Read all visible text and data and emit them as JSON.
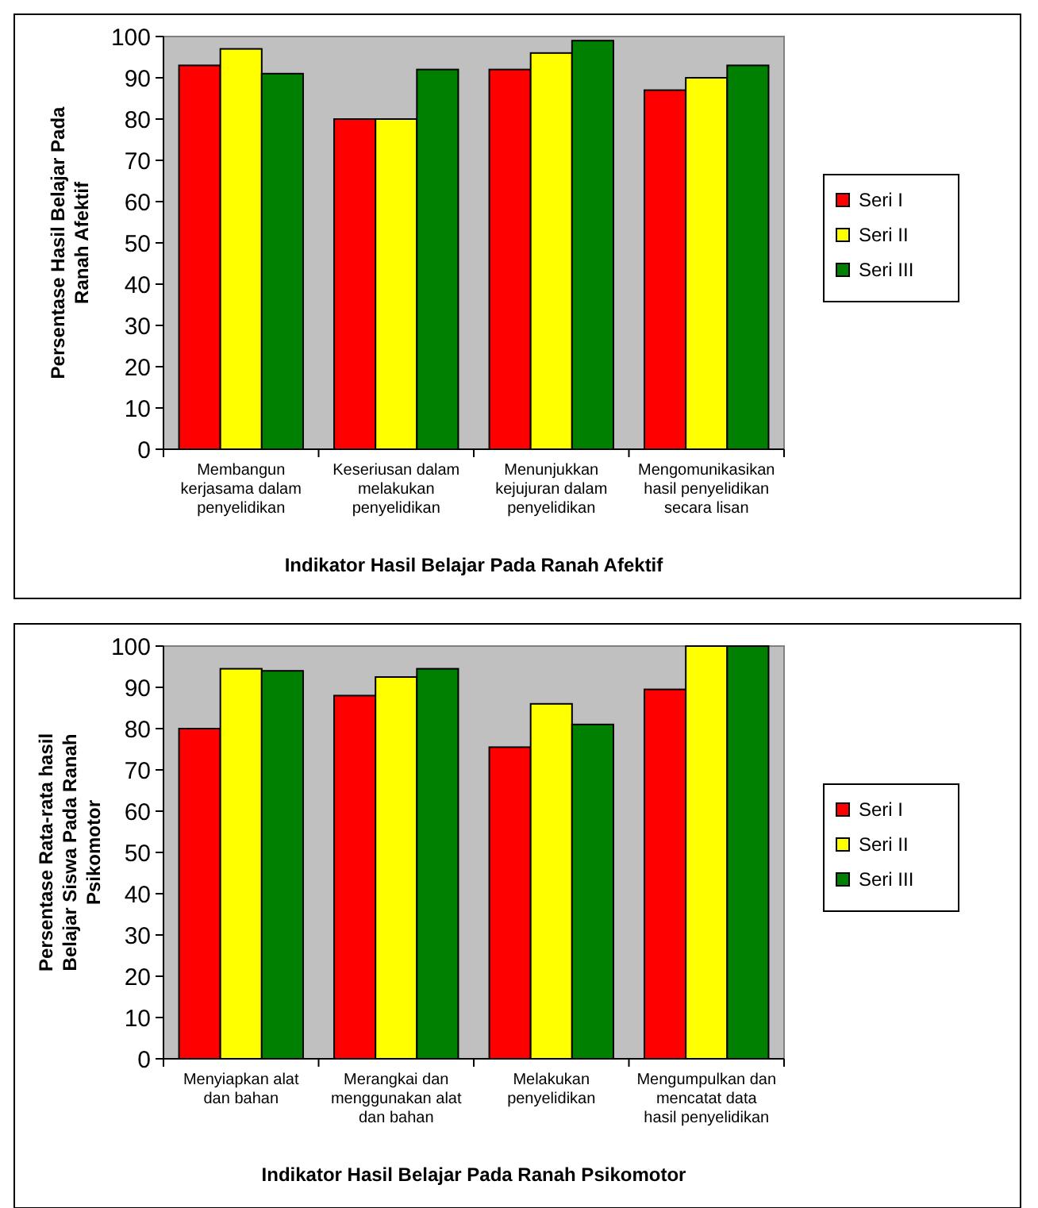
{
  "chart_data": [
    {
      "type": "bar",
      "xlabel": "Indikator Hasil Belajar Pada Ranah Afektif",
      "ylabel": "Persentase Hasil Belajar Pada Ranah Afektif",
      "categories": [
        "Membangun kerjasama dalam penyelidikan",
        "Keseriusan dalam melakukan penyelidikan",
        "Menunjukkan kejujuran dalam penyelidikan",
        "Mengomunikasikan hasil penyelidikan secara lisan"
      ],
      "ylim": [
        0,
        100
      ],
      "yticks": [
        0,
        10,
        20,
        30,
        40,
        50,
        60,
        70,
        80,
        90,
        100
      ],
      "legend": "right",
      "series": [
        {
          "name": "Seri I",
          "color": "#ff0000",
          "values": [
            93,
            80,
            92,
            87
          ]
        },
        {
          "name": "Seri II",
          "color": "#ffff00",
          "values": [
            97,
            80,
            96,
            90
          ]
        },
        {
          "name": "Seri III",
          "color": "#008000",
          "values": [
            91,
            92,
            99,
            93
          ]
        }
      ]
    },
    {
      "type": "bar",
      "xlabel": "Indikator Hasil Belajar Pada Ranah Psikomotor",
      "ylabel": "Persentase Rata-rata hasil Belajar Siswa Pada Ranah Psikomotor",
      "categories": [
        "Menyiapkan alat dan bahan",
        "Merangkai dan menggunakan alat dan bahan",
        "Melakukan penyelidikan",
        "Mengumpulkan dan mencatat data hasil penyelidikan"
      ],
      "ylim": [
        0,
        100
      ],
      "yticks": [
        0,
        10,
        20,
        30,
        40,
        50,
        60,
        70,
        80,
        90,
        100
      ],
      "legend": "right",
      "series": [
        {
          "name": "Seri I",
          "color": "#ff0000",
          "values": [
            80,
            88,
            75.5,
            89.5
          ]
        },
        {
          "name": "Seri II",
          "color": "#ffff00",
          "values": [
            94.5,
            92.5,
            86,
            100
          ]
        },
        {
          "name": "Seri III",
          "color": "#008000",
          "values": [
            94,
            94.5,
            81,
            100
          ]
        }
      ]
    }
  ]
}
